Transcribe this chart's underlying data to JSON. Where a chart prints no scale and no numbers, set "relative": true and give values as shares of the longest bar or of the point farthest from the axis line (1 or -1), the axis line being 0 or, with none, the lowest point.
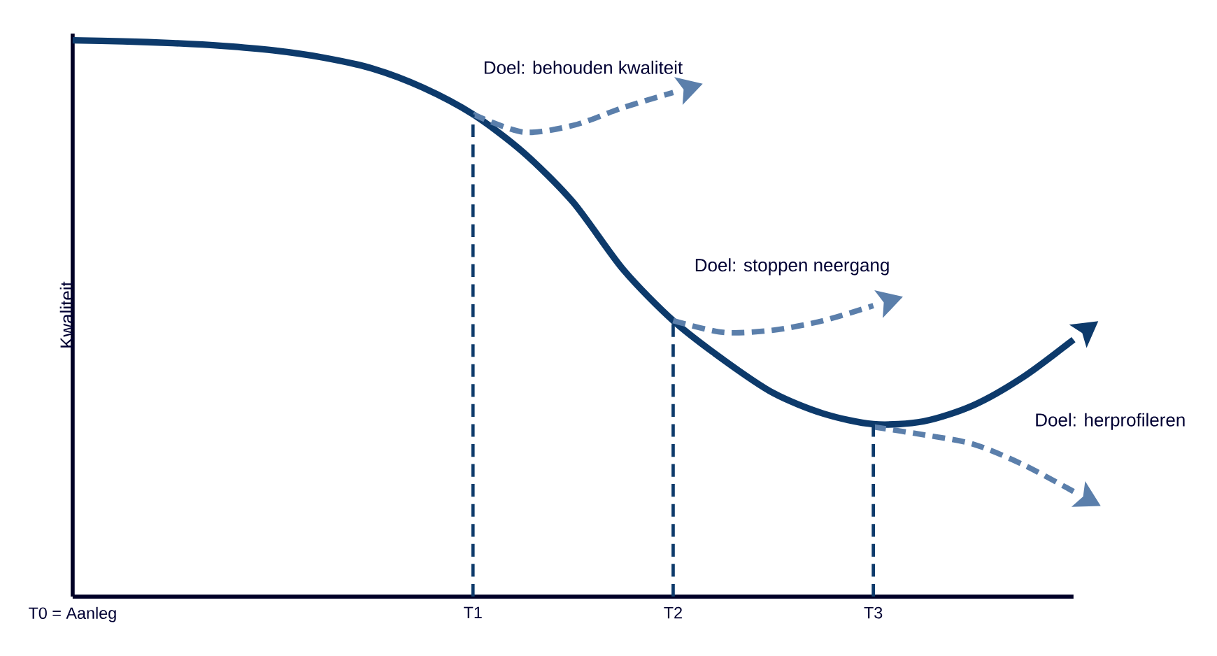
{
  "chart_data": {
    "type": "line",
    "relative": true,
    "ylabel": "Kwaliteit",
    "categories": [
      "T0 = Aanleg",
      null,
      null,
      null,
      null,
      null,
      null,
      null,
      "T1",
      null,
      null,
      null,
      "T2",
      null,
      null,
      null,
      "T3",
      null,
      null,
      null,
      null
    ],
    "marker": "none",
    "series": [
      {
        "color": "#0d3a6b",
        "line_style": "solid",
        "values": [
          1.0,
          0.998,
          0.995,
          0.99,
          0.982,
          0.969,
          0.949,
          0.915,
          0.867,
          0.799,
          0.709,
          0.588,
          0.496,
          0.426,
          0.366,
          0.329,
          0.31,
          0.315,
          0.344,
          0.395,
          0.462
        ]
      },
      {
        "color": "#5b7fab",
        "line_style": "dashed",
        "values": [
          null,
          null,
          null,
          null,
          null,
          null,
          null,
          null,
          0.867,
          0.835,
          0.847,
          0.879,
          0.906,
          null,
          null,
          null,
          null,
          null,
          null,
          null,
          null
        ]
      },
      {
        "color": "#5b7fab",
        "line_style": "dashed",
        "values": [
          null,
          null,
          null,
          null,
          null,
          null,
          null,
          null,
          null,
          null,
          null,
          null,
          0.496,
          0.475,
          0.479,
          0.496,
          0.523,
          null,
          null,
          null,
          null
        ]
      },
      {
        "color": "#5b7fab",
        "line_style": "dashed",
        "values": [
          null,
          null,
          null,
          null,
          null,
          null,
          null,
          null,
          null,
          null,
          null,
          null,
          null,
          null,
          null,
          null,
          0.305,
          0.291,
          0.274,
          0.237,
          0.189
        ]
      }
    ],
    "ref_lines": [
      {
        "axis": "x",
        "value": "T1",
        "color": "#0d3a6b",
        "line_style": "dashed"
      },
      {
        "axis": "x",
        "value": "T2",
        "color": "#0d3a6b",
        "line_style": "dashed"
      },
      {
        "axis": "x",
        "value": "T3",
        "color": "#0d3a6b",
        "line_style": "dashed"
      }
    ],
    "annotations": [
      "Doel: behouden kwaliteit",
      "Doel: stoppen neergang",
      "Doel: herprofileren"
    ]
  }
}
